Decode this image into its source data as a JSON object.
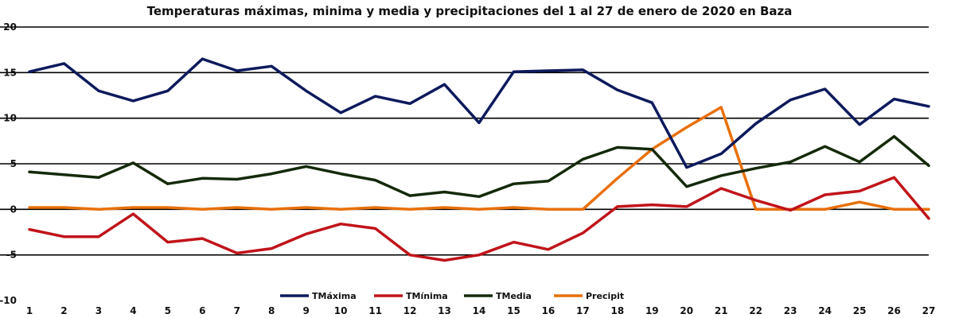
{
  "chart_data": {
    "type": "line",
    "title": "Temperaturas máximas, minima y media y precipitaciones del 1 al 27 de enero de 2020 en Baza",
    "xlabel": "",
    "ylabel": "",
    "x": [
      1,
      2,
      3,
      4,
      5,
      6,
      7,
      8,
      9,
      10,
      11,
      12,
      13,
      14,
      15,
      16,
      17,
      18,
      19,
      20,
      21,
      22,
      23,
      24,
      25,
      26,
      27
    ],
    "ylim": [
      -10,
      20
    ],
    "yticks": [
      -10,
      -5,
      0,
      5,
      10,
      15,
      20
    ],
    "grid": true,
    "legend_position": "bottom",
    "series": [
      {
        "name": "TMáxima",
        "color": "#0d1a5c",
        "values": [
          15.1,
          16.0,
          13.0,
          11.9,
          13.0,
          16.5,
          15.2,
          15.7,
          13.0,
          10.6,
          12.4,
          11.6,
          13.7,
          9.5,
          15.1,
          15.2,
          15.3,
          13.1,
          11.7,
          4.6,
          6.1,
          9.4,
          12.0,
          13.2,
          9.3,
          12.1,
          11.3
        ]
      },
      {
        "name": "TMínima",
        "color": "#c0141a",
        "values": [
          -2.2,
          -3.0,
          -3.0,
          -0.5,
          -3.6,
          -3.2,
          -4.8,
          -4.3,
          -2.7,
          -1.6,
          -2.1,
          -5.0,
          -5.6,
          -5.0,
          -3.6,
          -4.4,
          -2.6,
          0.3,
          0.5,
          0.3,
          2.3,
          1.0,
          -0.1,
          1.6,
          2.0,
          3.5,
          -1.0
        ]
      },
      {
        "name": "TMedia",
        "color": "#142a0a",
        "values": [
          4.1,
          3.8,
          3.5,
          5.1,
          2.8,
          3.4,
          3.3,
          3.9,
          4.7,
          3.9,
          3.2,
          1.5,
          1.9,
          1.4,
          2.8,
          3.1,
          5.5,
          6.8,
          6.6,
          2.5,
          3.7,
          4.5,
          5.2,
          6.9,
          5.2,
          8.0,
          4.8
        ]
      },
      {
        "name": "Precipit",
        "color": "#e8700a",
        "values": [
          0.2,
          0.2,
          0.0,
          0.2,
          0.2,
          0.0,
          0.2,
          0.0,
          0.2,
          0.0,
          0.2,
          0.0,
          0.2,
          0.0,
          0.2,
          0.0,
          0.0,
          3.4,
          6.6,
          9.0,
          11.2,
          0.0,
          0.0,
          0.0,
          0.8,
          0.0,
          0.0
        ]
      }
    ]
  }
}
